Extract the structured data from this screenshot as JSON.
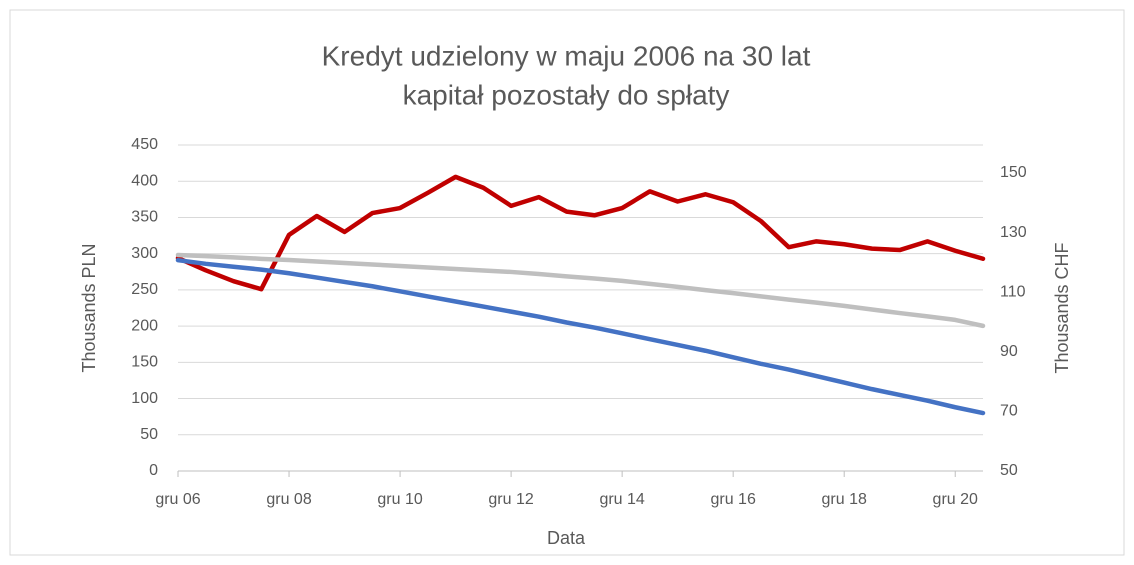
{
  "chart_data": {
    "type": "line",
    "title": "Kredyt udzielony w maju 2006 na 30 lat",
    "subtitle": "kapitał pozostały do spłaty",
    "x_label": "Data",
    "y_label": "Thousands  PLN",
    "y2_label": "Thousands  CHF",
    "categories": [
      "gru 06",
      null,
      null,
      null,
      "gru 08",
      null,
      null,
      null,
      "gru 10",
      null,
      null,
      null,
      "gru 12",
      null,
      null,
      null,
      "gru 14",
      null,
      null,
      null,
      "gru 16",
      null,
      null,
      null,
      "gru 18",
      null,
      null,
      null,
      "gru 20",
      null
    ],
    "series": [
      {
        "color": "#c00000",
        "values": [
          294,
          277,
          262,
          251,
          326,
          352,
          330,
          356,
          363,
          384,
          406,
          391,
          366,
          378,
          358,
          353,
          363,
          386,
          372,
          382,
          371,
          345,
          309,
          317,
          313,
          307,
          305,
          317,
          304,
          293
        ]
      },
      {
        "color": "#4472c4",
        "values": [
          291,
          286,
          282,
          278,
          273,
          267,
          261,
          255,
          248,
          241,
          234,
          227,
          220,
          213,
          205,
          198,
          190,
          182,
          174,
          166,
          157,
          148,
          140,
          131,
          122,
          113,
          105,
          97,
          88,
          80
        ]
      },
      {
        "color": "#bfbfbf",
        "axis": "y2",
        "values": [
          122.5,
          122.1,
          121.7,
          121.2,
          120.8,
          120.3,
          119.8,
          119.3,
          118.8,
          118.3,
          117.8,
          117.3,
          116.8,
          116.1,
          115.3,
          114.6,
          113.8,
          112.8,
          111.8,
          110.7,
          109.7,
          108.6,
          107.5,
          106.5,
          105.4,
          104.2,
          103.0,
          101.9,
          100.7,
          98.7
        ]
      }
    ],
    "ylim": [
      0,
      450
    ],
    "yticks": [
      0,
      50,
      100,
      150,
      200,
      250,
      300,
      350,
      400,
      450
    ],
    "y2lim": [
      50,
      150
    ],
    "y2ticks": [
      50,
      70,
      90,
      110,
      130,
      150
    ],
    "grid": true
  }
}
